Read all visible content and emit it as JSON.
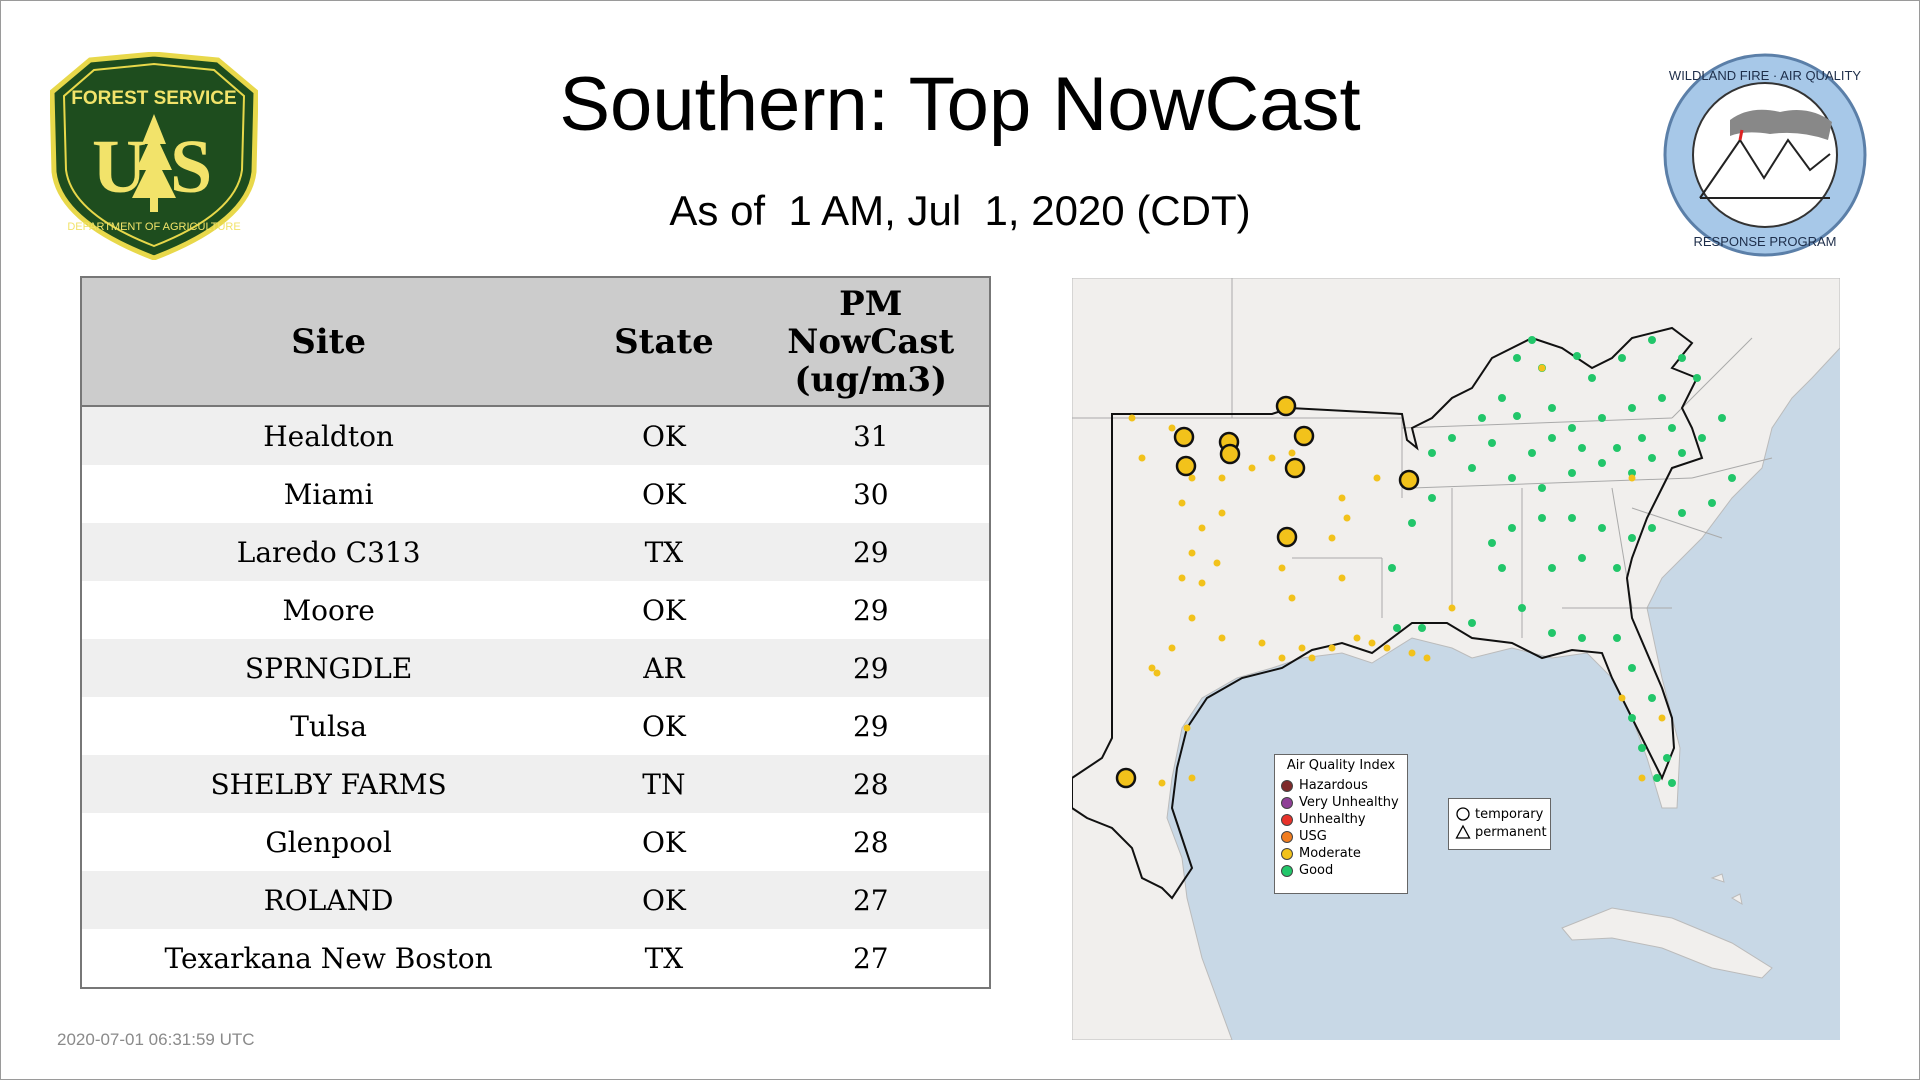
{
  "header": {
    "title": "Southern: Top NowCast",
    "subtitle": "As of  1 AM, Jul  1, 2020 (CDT)"
  },
  "logos": {
    "usfs": {
      "top_text": "FOREST SERVICE",
      "initials": "U S",
      "bottom_text": "DEPARTMENT OF AGRICULTURE",
      "colors": {
        "shield": "#1e4d1e",
        "border": "#e8d84a",
        "text": "#f2e36a"
      }
    },
    "wfaq": {
      "top_text": "WILDLAND FIRE · AIR QUALITY",
      "bottom_text": "RESPONSE PROGRAM",
      "colors": {
        "ring": "#a7c8e8",
        "ring_border": "#5b7fa8"
      }
    }
  },
  "table": {
    "headers": {
      "site": "Site",
      "state": "State",
      "pm": [
        "PM",
        "NowCast",
        "(ug/m3)"
      ]
    },
    "rows": [
      {
        "site": "Healdton",
        "state": "OK",
        "value": "31"
      },
      {
        "site": "Miami",
        "state": "OK",
        "value": "30"
      },
      {
        "site": "Laredo C313",
        "state": "TX",
        "value": "29"
      },
      {
        "site": "Moore",
        "state": "OK",
        "value": "29"
      },
      {
        "site": "SPRNGDLE",
        "state": "AR",
        "value": "29"
      },
      {
        "site": "Tulsa",
        "state": "OK",
        "value": "29"
      },
      {
        "site": "SHELBY FARMS",
        "state": "TN",
        "value": "28"
      },
      {
        "site": "Glenpool",
        "state": "OK",
        "value": "28"
      },
      {
        "site": "ROLAND",
        "state": "OK",
        "value": "27"
      },
      {
        "site": "Texarkana New Boston",
        "state": "TX",
        "value": "27"
      }
    ]
  },
  "timestamp": "2020-07-01 06:31:59 UTC",
  "map": {
    "legend_aqi": {
      "title": "Air Quality Index",
      "items": [
        {
          "label": "Hazardous",
          "color": "#7e2a2a"
        },
        {
          "label": "Very Unhealthy",
          "color": "#8f3f97"
        },
        {
          "label": "Unhealthy",
          "color": "#e8322a"
        },
        {
          "label": "USG",
          "color": "#f07c1f"
        },
        {
          "label": "Moderate",
          "color": "#f2c21b"
        },
        {
          "label": "Good",
          "color": "#22c66a"
        }
      ]
    },
    "legend_type": {
      "items": [
        {
          "label": "temporary",
          "shape": "circle"
        },
        {
          "label": "permanent",
          "shape": "triangle"
        }
      ]
    },
    "colors": {
      "water": "#c8d8e6",
      "land": "#f1efed",
      "moderate": "#f2c21b",
      "good": "#22c66a"
    }
  }
}
